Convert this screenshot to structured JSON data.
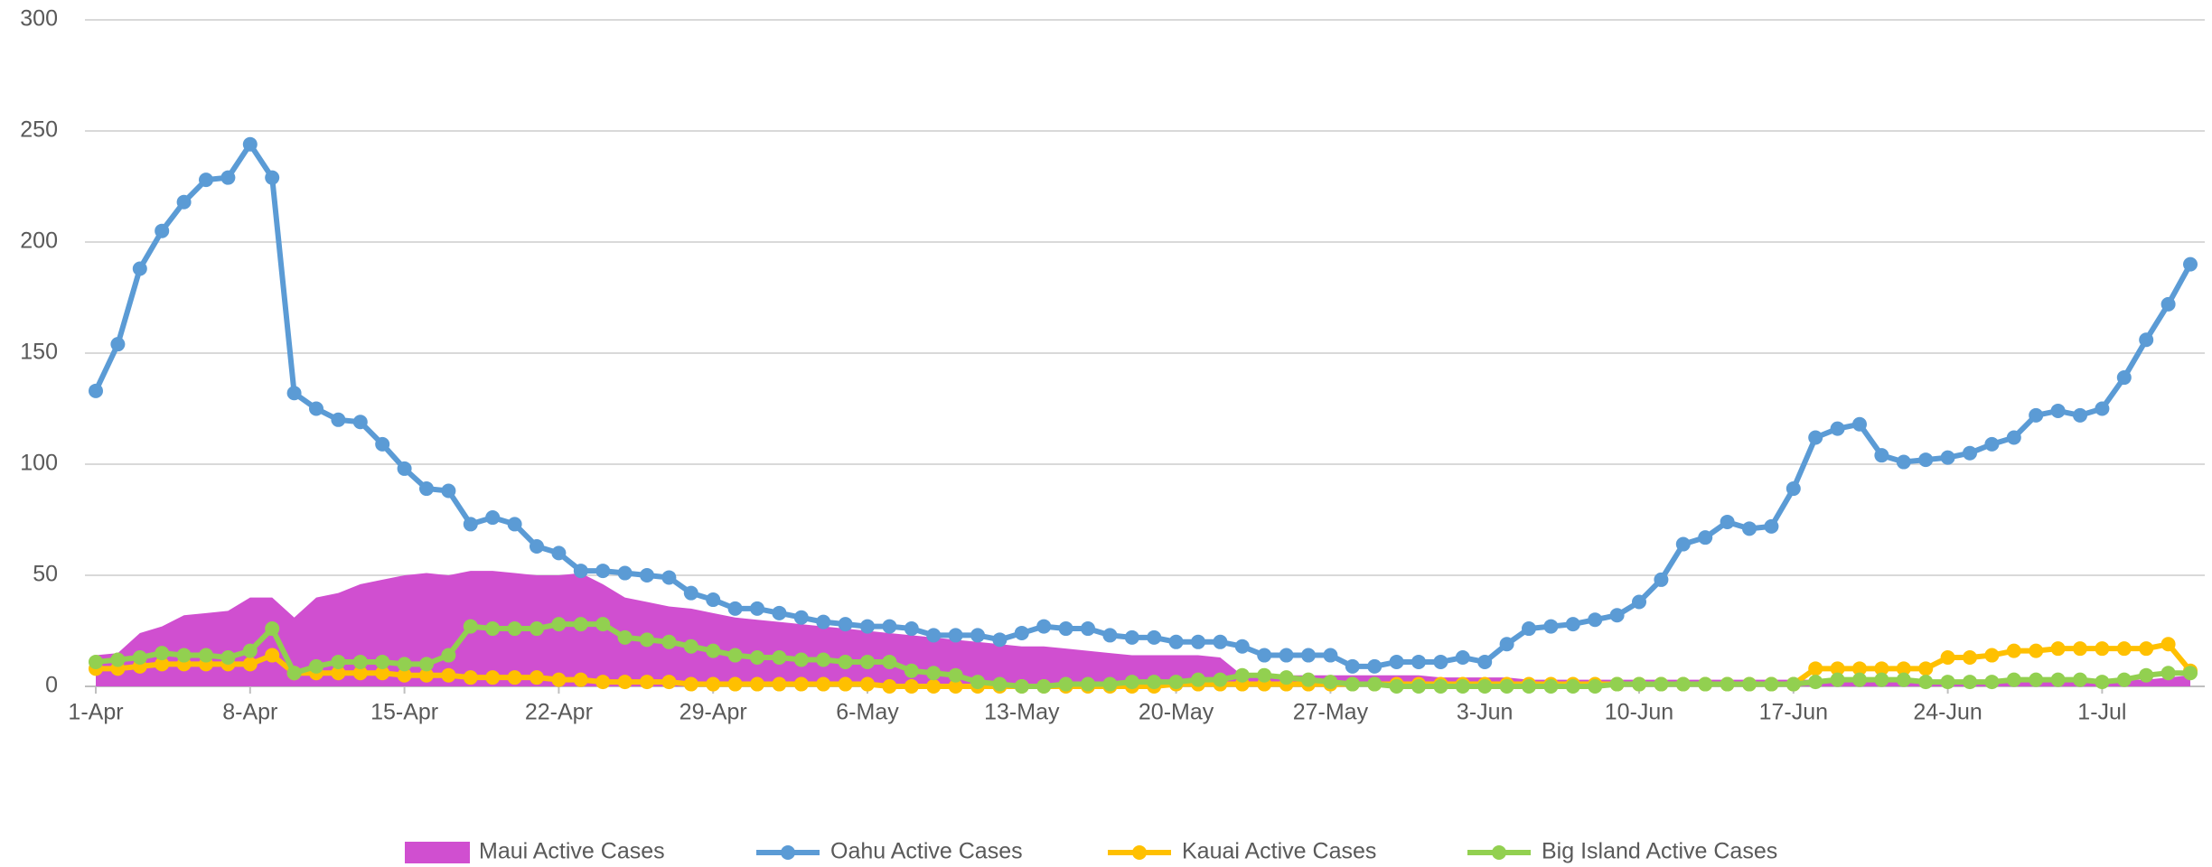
{
  "chart_data": {
    "type": "line",
    "categories": [
      "1-Apr",
      null,
      null,
      null,
      null,
      null,
      null,
      "8-Apr",
      null,
      null,
      null,
      null,
      null,
      null,
      "15-Apr",
      null,
      null,
      null,
      null,
      null,
      null,
      "22-Apr",
      null,
      null,
      null,
      null,
      null,
      null,
      "29-Apr",
      null,
      null,
      null,
      null,
      null,
      null,
      "6-May",
      null,
      null,
      null,
      null,
      null,
      null,
      "13-May",
      null,
      null,
      null,
      null,
      null,
      null,
      "20-May",
      null,
      null,
      null,
      null,
      null,
      null,
      "27-May",
      null,
      null,
      null,
      null,
      null,
      null,
      "3-Jun",
      null,
      null,
      null,
      null,
      null,
      null,
      "10-Jun",
      null,
      null,
      null,
      null,
      null,
      null,
      "17-Jun",
      null,
      null,
      null,
      null,
      null,
      null,
      "24-Jun",
      null,
      null,
      null,
      null,
      null,
      null,
      "1-Jul",
      null,
      null,
      null,
      null
    ],
    "series": [
      {
        "name": "Maui Active Cases",
        "type": "area",
        "color": "#d04fd0",
        "values": [
          14,
          15,
          24,
          27,
          32,
          33,
          34,
          40,
          40,
          31,
          40,
          42,
          46,
          48,
          50,
          51,
          50,
          52,
          52,
          51,
          50,
          50,
          51,
          46,
          40,
          38,
          36,
          35,
          33,
          31,
          30,
          29,
          28,
          27,
          26,
          25,
          24,
          23,
          22,
          21,
          20,
          19,
          18,
          18,
          17,
          16,
          15,
          14,
          14,
          14,
          14,
          13,
          5,
          5,
          5,
          5,
          5,
          5,
          5,
          5,
          5,
          4,
          4,
          4,
          4,
          3,
          3,
          3,
          3,
          3,
          3,
          3,
          3,
          3,
          3,
          3,
          3,
          3,
          3,
          3,
          3,
          3,
          3,
          3,
          3,
          3,
          3,
          3,
          3,
          3,
          3,
          3,
          3,
          3,
          4,
          5
        ]
      },
      {
        "name": "Oahu Active Cases",
        "type": "line",
        "color": "#5b9bd5",
        "values": [
          133,
          154,
          188,
          205,
          218,
          228,
          229,
          244,
          229,
          132,
          125,
          120,
          119,
          109,
          98,
          89,
          88,
          73,
          76,
          73,
          63,
          60,
          52,
          52,
          51,
          50,
          49,
          42,
          39,
          35,
          35,
          33,
          31,
          29,
          28,
          27,
          27,
          26,
          23,
          23,
          23,
          21,
          24,
          27,
          26,
          26,
          23,
          22,
          22,
          20,
          20,
          20,
          18,
          14,
          14,
          14,
          14,
          9,
          9,
          11,
          11,
          11,
          13,
          11,
          19,
          26,
          27,
          28,
          30,
          32,
          38,
          48,
          64,
          67,
          74,
          71,
          72,
          89,
          112,
          116,
          118,
          104,
          101,
          102,
          103,
          105,
          109,
          112,
          122,
          124,
          122,
          125,
          139,
          156,
          172,
          190
        ]
      },
      {
        "name": "Kauai Active Cases",
        "type": "line",
        "color": "#ffc000",
        "values": [
          8,
          8,
          9,
          10,
          10,
          10,
          10,
          10,
          14,
          6,
          6,
          6,
          6,
          6,
          5,
          5,
          5,
          4,
          4,
          4,
          4,
          3,
          3,
          2,
          2,
          2,
          2,
          1,
          1,
          1,
          1,
          1,
          1,
          1,
          1,
          1,
          0,
          0,
          0,
          0,
          0,
          0,
          0,
          0,
          0,
          0,
          0,
          0,
          0,
          1,
          1,
          1,
          1,
          1,
          1,
          1,
          1,
          1,
          1,
          1,
          1,
          1,
          1,
          1,
          1,
          1,
          1,
          1,
          1,
          1,
          1,
          1,
          1,
          1,
          1,
          1,
          1,
          1,
          8,
          8,
          8,
          8,
          8,
          8,
          13,
          13,
          14,
          16,
          16,
          17,
          17,
          17,
          17,
          17,
          19,
          7
        ]
      },
      {
        "name": "Big Island Active Cases",
        "type": "line",
        "color": "#92d050",
        "values": [
          11,
          12,
          13,
          15,
          14,
          14,
          13,
          16,
          26,
          6,
          9,
          11,
          11,
          11,
          10,
          10,
          14,
          27,
          26,
          26,
          26,
          28,
          28,
          28,
          22,
          21,
          20,
          18,
          16,
          14,
          13,
          13,
          12,
          12,
          11,
          11,
          11,
          7,
          6,
          5,
          2,
          1,
          0,
          0,
          1,
          1,
          1,
          2,
          2,
          2,
          3,
          3,
          5,
          5,
          4,
          3,
          2,
          1,
          1,
          0,
          0,
          0,
          0,
          0,
          0,
          0,
          0,
          0,
          0,
          1,
          1,
          1,
          1,
          1,
          1,
          1,
          1,
          1,
          2,
          3,
          3,
          3,
          3,
          2,
          2,
          2,
          2,
          3,
          3,
          3,
          3,
          2,
          3,
          5,
          6,
          6
        ]
      }
    ],
    "ylim": [
      0,
      300
    ],
    "yticks": [
      0,
      50,
      100,
      150,
      200,
      250,
      300
    ],
    "grid": true,
    "legend": "bottom"
  }
}
